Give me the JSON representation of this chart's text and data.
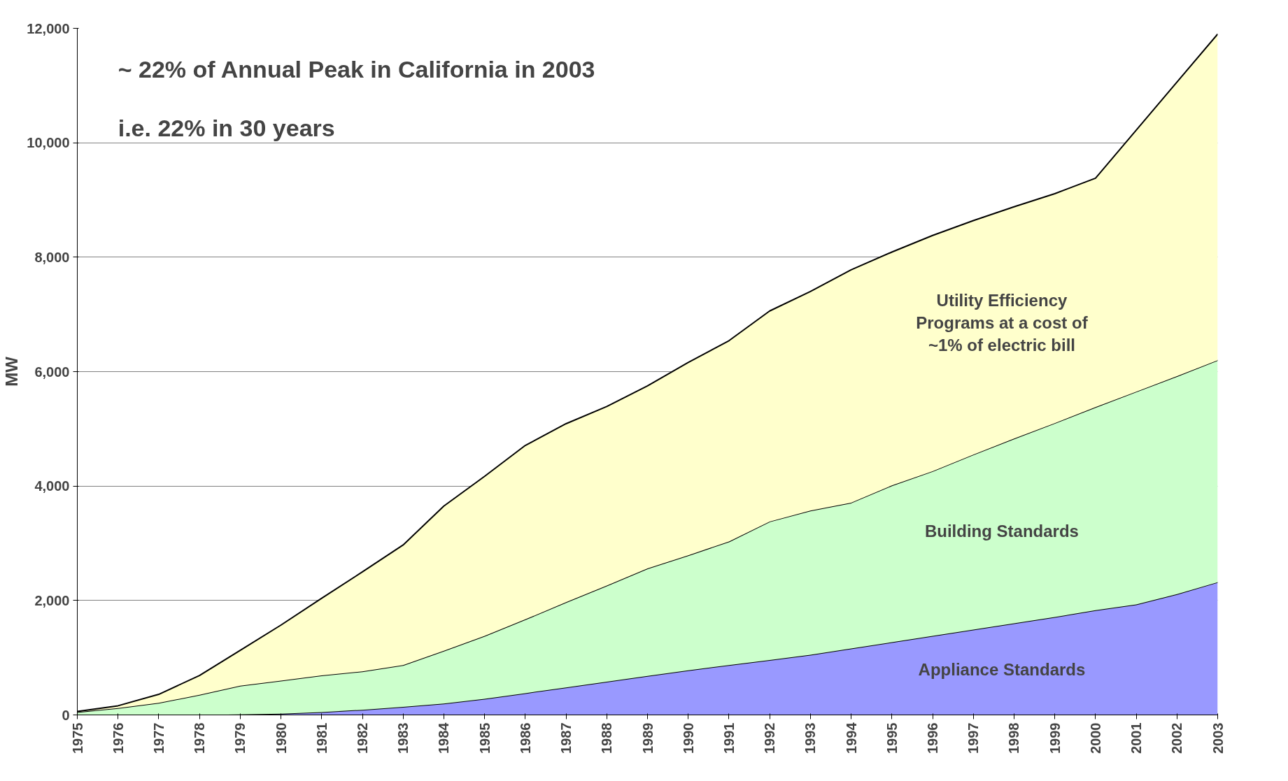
{
  "chart_data": {
    "type": "area",
    "stacked": true,
    "ylabel": "MW",
    "categories": [
      "1975",
      "1976",
      "1977",
      "1978",
      "1979",
      "1980",
      "1981",
      "1982",
      "1983",
      "1984",
      "1985",
      "1986",
      "1987",
      "1988",
      "1989",
      "1990",
      "1991",
      "1992",
      "1993",
      "1994",
      "1995",
      "1996",
      "1997",
      "1998",
      "1999",
      "2000",
      "2001",
      "2002",
      "2003"
    ],
    "series": [
      {
        "name": "Appliance Standards",
        "color": "#9999ff",
        "values": [
          0,
          0,
          0,
          0,
          10,
          20,
          50,
          90,
          140,
          200,
          280,
          380,
          480,
          580,
          680,
          780,
          870,
          960,
          1050,
          1160,
          1270,
          1380,
          1490,
          1600,
          1710,
          1830,
          1930,
          2110,
          2320
        ]
      },
      {
        "name": "Building Standards",
        "color": "#ccffcc",
        "values": [
          50,
          120,
          210,
          350,
          500,
          580,
          640,
          670,
          730,
          920,
          1100,
          1290,
          1490,
          1680,
          1880,
          2010,
          2160,
          2420,
          2520,
          2550,
          2740,
          2880,
          3060,
          3230,
          3390,
          3550,
          3720,
          3810,
          3880
        ]
      },
      {
        "name": "Utility Efficiency\nPrograms at a cost of\n~1% of electric bill",
        "color": "#ffffcc",
        "values": [
          10,
          40,
          150,
          340,
          620,
          970,
          1350,
          1740,
          2100,
          2530,
          2790,
          3040,
          3120,
          3130,
          3190,
          3370,
          3510,
          3680,
          3830,
          4070,
          4080,
          4120,
          4090,
          4050,
          4010,
          4000,
          4570,
          5140,
          5700
        ]
      }
    ],
    "ylim": [
      0,
      12000
    ],
    "yticks": [
      0,
      {
        "value": 2000,
        "label": "2,000"
      },
      {
        "value": 4000,
        "label": "4,000"
      },
      {
        "value": 6000,
        "label": "6,000"
      },
      {
        "value": 8000,
        "label": "8,000"
      },
      {
        "value": 10000,
        "label": "10,000"
      },
      {
        "value": 12000,
        "label": "12,000"
      }
    ],
    "grid": "y",
    "legend": false,
    "annotations": [
      "~  22% of Annual Peak in California in 2003",
      "i.e. 22% in 30 years"
    ]
  }
}
